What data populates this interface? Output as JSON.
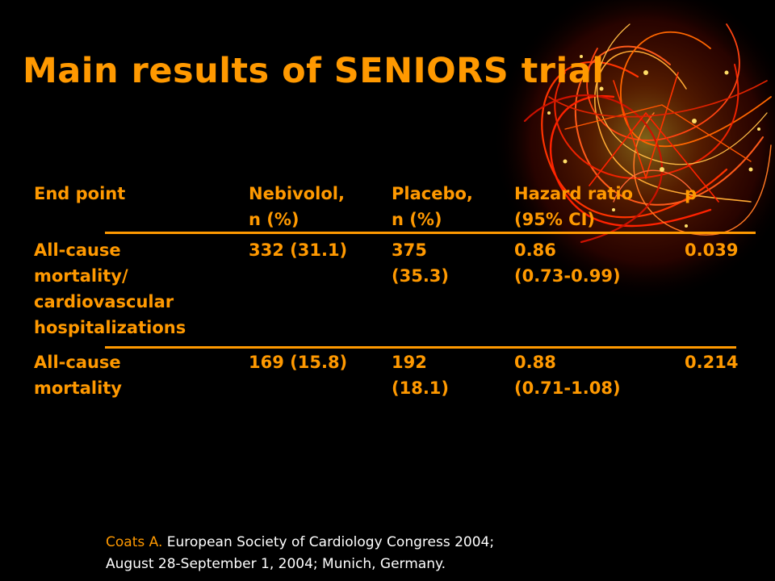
{
  "slide": {
    "title": "Main results of SENIORS trial",
    "accent_color": "#ff9900",
    "background_color": "#000000",
    "decoration": "red-gold-string-ornament"
  },
  "table": {
    "headers": [
      [
        "End point"
      ],
      [
        "Nebivolol,",
        "n (%)"
      ],
      [
        "Placebo,",
        "n (%)"
      ],
      [
        "Hazard ratio",
        "(95% CI)"
      ],
      [
        "p"
      ]
    ],
    "rows": [
      [
        [
          "All-cause",
          "mortality/",
          "cardiovascular",
          "hospitalizations"
        ],
        [
          "332 (31.1)"
        ],
        [
          "375",
          "(35.3)"
        ],
        [
          "0.86",
          "(0.73-0.99)"
        ],
        [
          "0.039"
        ]
      ],
      [
        [
          "All-cause",
          "mortality"
        ],
        [
          "169 (15.8)"
        ],
        [
          "192",
          "(18.1)"
        ],
        [
          "0.88",
          "(0.71-1.08)"
        ],
        [
          "0.214"
        ]
      ]
    ]
  },
  "citation": {
    "author": "Coats A.",
    "line1_rest": " European Society of Cardiology Congress 2004;",
    "line2": "August 28-September 1, 2004; Munich, Germany."
  }
}
